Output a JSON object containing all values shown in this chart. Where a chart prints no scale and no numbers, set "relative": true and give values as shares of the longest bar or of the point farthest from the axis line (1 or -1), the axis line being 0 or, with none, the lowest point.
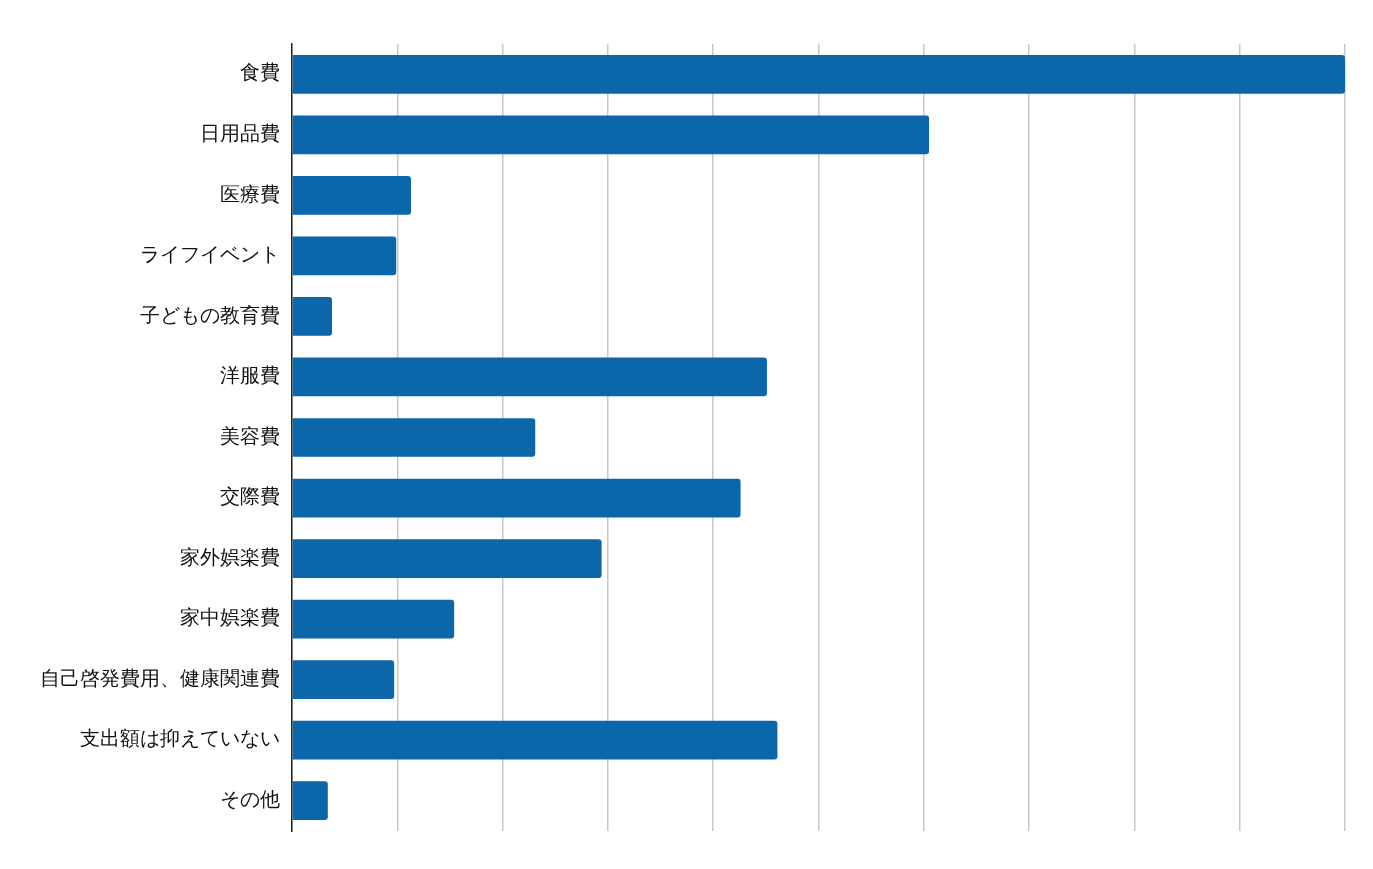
{
  "chart_data": {
    "type": "bar",
    "orientation": "horizontal",
    "relative": true,
    "grid": "x",
    "legend": false,
    "categories": [
      "食費",
      "日用品費",
      "医療費",
      "ライフイベント",
      "子どもの教育費",
      "洋服費",
      "美容費",
      "交際費",
      "家外娯楽費",
      "家中娯楽費",
      "自己啓発費用、健康関連費",
      "支出額は抑えていない",
      "その他"
    ],
    "color": "#0b66aa",
    "values": [
      1,
      0.605,
      0.113,
      0.099,
      0.038,
      0.451,
      0.231,
      0.426,
      0.294,
      0.154,
      0.097,
      0.461,
      0.034
    ]
  }
}
